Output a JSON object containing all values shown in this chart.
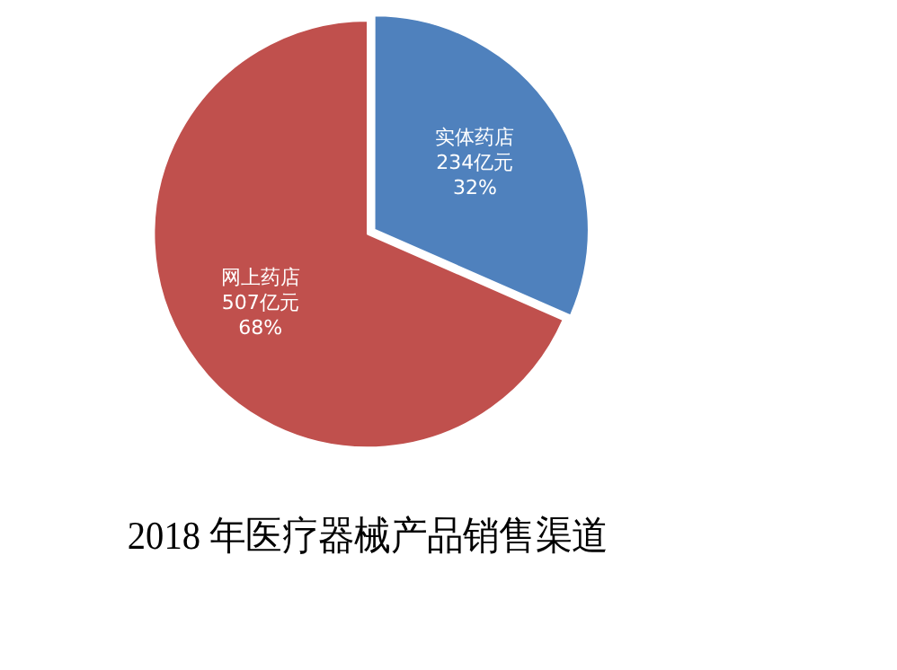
{
  "chart_data": {
    "type": "pie",
    "title": "2018 年医疗器械产品销售渠道",
    "categories": [
      "实体药店",
      "网上药店"
    ],
    "values": [
      234,
      507
    ],
    "colors": [
      "#4f81bd",
      "#c0504d"
    ],
    "value_labels": [
      "234亿元\n32%",
      "507亿元\n68%"
    ],
    "legend": false
  }
}
